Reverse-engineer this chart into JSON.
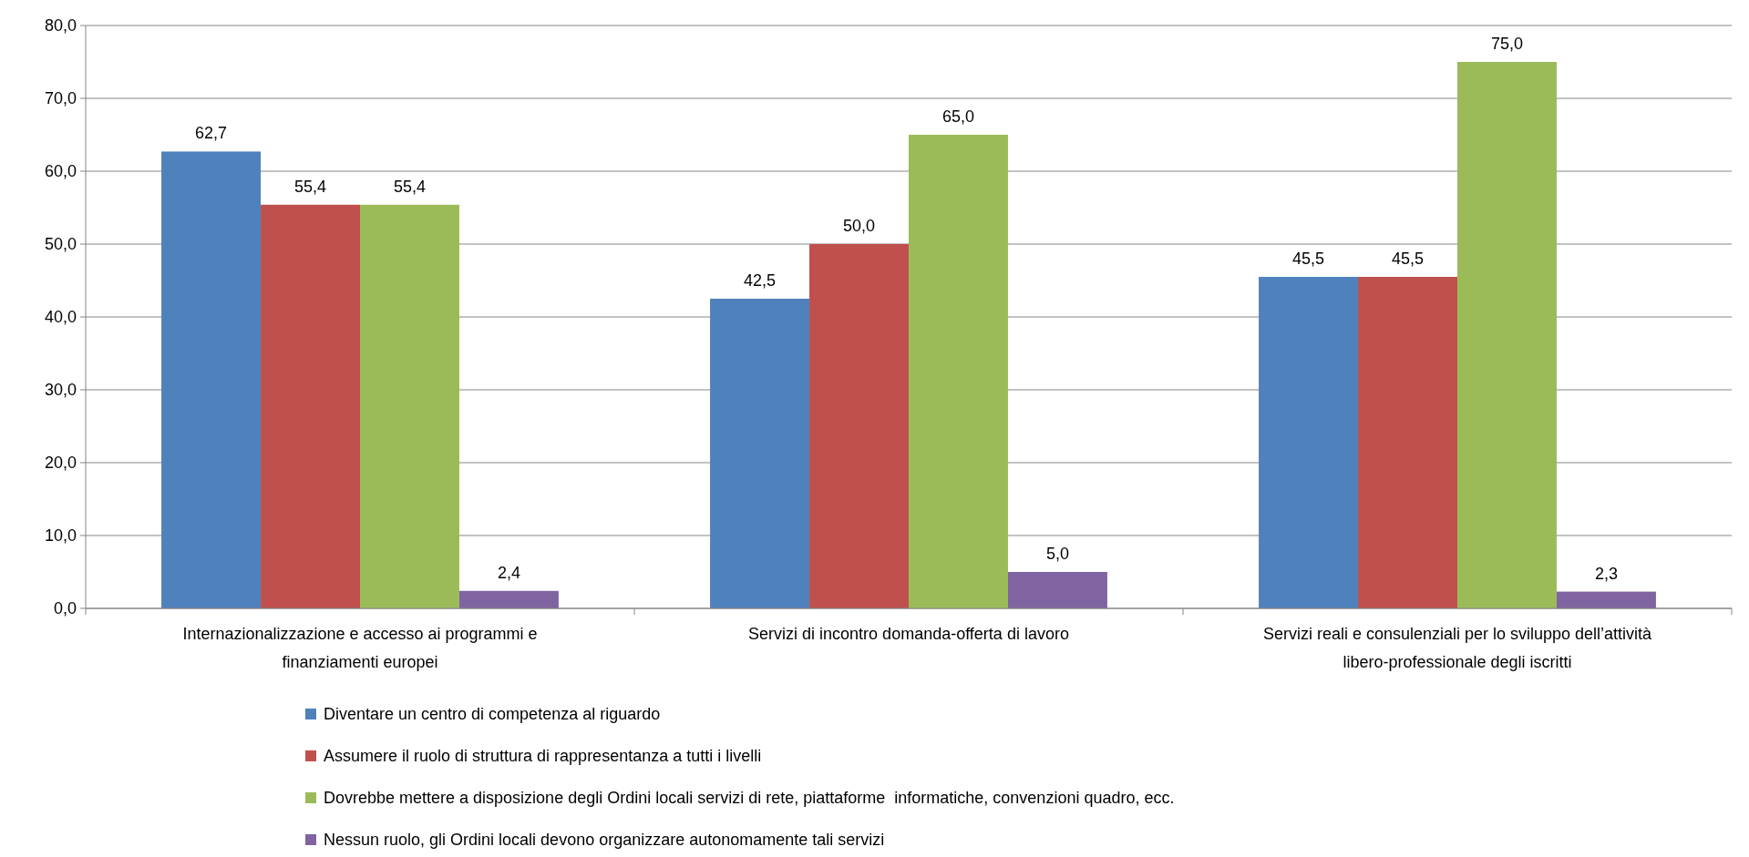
{
  "chart_data": {
    "type": "bar",
    "categories": [
      "Internazionalizzazione e accesso ai programmi e finanziamenti europei",
      "Servizi di incontro domanda-offerta di lavoro",
      "Servizi reali e consulenziali per lo sviluppo dell’attività libero-professionale degli iscritti"
    ],
    "series": [
      {
        "name": "Diventare un centro di competenza al riguardo",
        "color": "#4f81bd",
        "values": [
          62.7,
          42.5,
          45.5
        ],
        "value_labels": [
          "62,7",
          "42,5",
          "45,5"
        ]
      },
      {
        "name": "Assumere il ruolo di struttura di rappresentanza a tutti i livelli",
        "color": "#c0504d",
        "values": [
          55.4,
          50.0,
          45.5
        ],
        "value_labels": [
          "55,4",
          "50,0",
          "45,5"
        ]
      },
      {
        "name": "Dovrebbe mettere a disposizione degli Ordini locali servizi di rete, piattaforme  informatiche, convenzioni quadro, ecc.",
        "color": "#9bbb59",
        "values": [
          55.4,
          65.0,
          75.0
        ],
        "value_labels": [
          "55,4",
          "65,0",
          "75,0"
        ]
      },
      {
        "name": "Nessun ruolo, gli Ordini locali devono organizzare autonomamente tali servizi",
        "color": "#8064a2",
        "values": [
          2.4,
          5.0,
          2.3
        ],
        "value_labels": [
          "2,4",
          "5,0",
          "2,3"
        ]
      }
    ],
    "ylim": [
      0,
      80
    ],
    "yticks": [
      {
        "value": 0,
        "label": "0,0"
      },
      {
        "value": 10,
        "label": "10,0"
      },
      {
        "value": 20,
        "label": "20,0"
      },
      {
        "value": 30,
        "label": "30,0"
      },
      {
        "value": 40,
        "label": "40,0"
      },
      {
        "value": 50,
        "label": "50,0"
      },
      {
        "value": 60,
        "label": "60,0"
      },
      {
        "value": 70,
        "label": "70,0"
      },
      {
        "value": 80,
        "label": "80,0"
      }
    ],
    "grid": "y",
    "legend": "bottom"
  }
}
